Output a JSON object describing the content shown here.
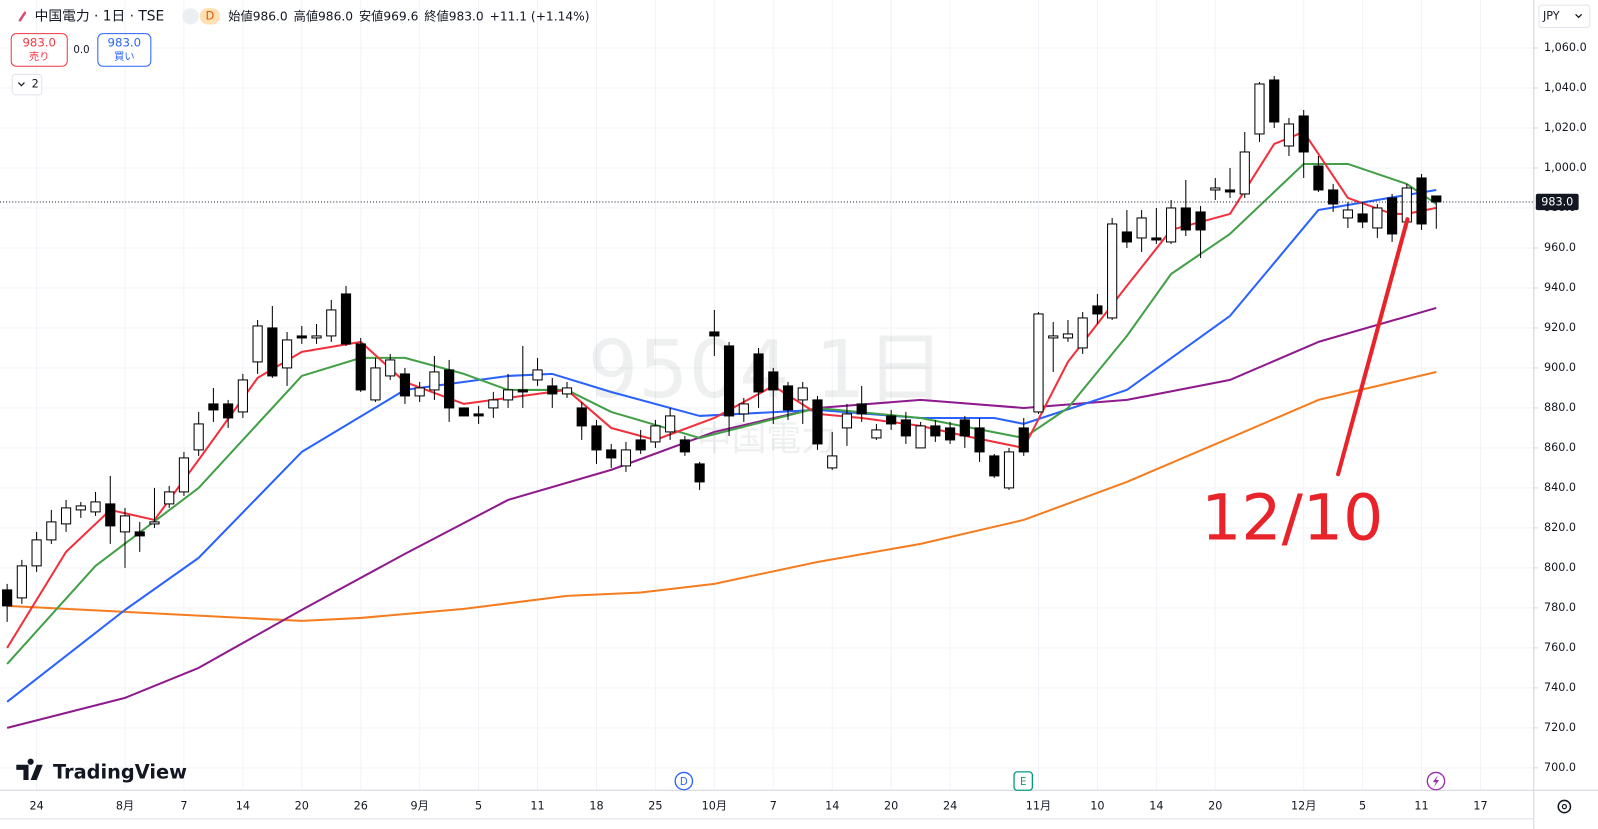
{
  "header": {
    "title": "中国電力 · 1日 · TSE",
    "interval": "D",
    "quote": [
      {
        "label": "始値",
        "value": "986.0"
      },
      {
        "label": "高値",
        "value": "986.0"
      },
      {
        "label": "安値",
        "value": "969.6"
      },
      {
        "label": "終値",
        "value": "983.0"
      }
    ],
    "change": "+11.1 (+1.14%)"
  },
  "trade": {
    "sell_price": "983.0",
    "sell": "売り",
    "spread": "0.0",
    "buy_price": "983.0",
    "buy": "買い"
  },
  "indicators_count": "2",
  "currency": "JPY",
  "watermark": {
    "symbol": "9504 1日",
    "name": "中国電力"
  },
  "logo": "TradingView",
  "events": [
    "D",
    "E"
  ],
  "chart_data": {
    "type": "candlestick",
    "categories": [
      null,
      null,
      "24",
      null,
      null,
      null,
      null,
      null,
      "8月",
      null,
      null,
      null,
      "7",
      null,
      null,
      null,
      "14",
      null,
      null,
      null,
      "20",
      null,
      null,
      null,
      "26",
      null,
      null,
      null,
      "9月",
      null,
      null,
      null,
      "5",
      null,
      null,
      null,
      "11",
      null,
      null,
      null,
      "18",
      null,
      null,
      null,
      "25",
      null,
      null,
      null,
      "10月",
      null,
      null,
      null,
      "7",
      null,
      null,
      null,
      "14",
      null,
      null,
      null,
      "20",
      null,
      null,
      null,
      "24",
      null,
      null,
      null,
      null,
      null,
      "11月",
      null,
      null,
      null,
      "10",
      null,
      null,
      null,
      "14",
      null,
      null,
      null,
      "20",
      null,
      null,
      null,
      null,
      null,
      "12月",
      null,
      null,
      null,
      "5",
      null,
      null,
      null,
      "11",
      null,
      null,
      null,
      "17"
    ],
    "open": [
      789,
      785,
      801,
      814,
      822,
      829,
      828,
      832,
      818,
      818,
      822,
      832,
      838,
      859,
      882,
      882,
      878,
      903,
      920,
      900,
      916,
      915,
      916,
      937,
      912,
      884,
      896,
      897,
      886,
      889,
      899,
      880,
      877,
      880,
      884,
      889,
      894,
      891,
      887,
      880,
      871,
      859,
      851,
      864,
      863,
      868,
      864,
      852,
      918,
      911,
      877,
      907,
      898,
      891,
      884,
      884,
      850,
      870,
      882,
      865,
      876,
      874,
      860,
      871,
      870,
      874,
      870,
      856,
      840,
      870,
      878,
      915,
      915,
      910,
      931,
      925,
      968,
      965,
      965,
      963,
      980,
      978,
      989,
      989,
      987,
      1017,
      1044,
      1011,
      1026,
      1001,
      989,
      975,
      977,
      970,
      985,
      973,
      995,
      986,
      null,
      null,
      null
    ],
    "high": [
      792,
      804,
      818,
      829,
      834,
      833,
      838,
      846,
      830,
      823,
      840,
      841,
      858,
      878,
      890,
      884,
      897,
      924,
      931,
      918,
      921,
      922,
      934,
      941,
      915,
      905,
      907,
      900,
      893,
      906,
      904,
      880,
      881,
      888,
      897,
      911,
      905,
      895,
      893,
      883,
      874,
      862,
      863,
      869,
      874,
      880,
      866,
      853,
      929,
      913,
      885,
      910,
      900,
      893,
      893,
      886,
      868,
      882,
      891,
      872,
      879,
      878,
      873,
      874,
      873,
      876,
      875,
      857,
      860,
      875,
      928,
      923,
      924,
      928,
      937,
      975,
      979,
      979,
      980,
      984,
      994,
      981,
      995,
      1000,
      1018,
      1043,
      1046,
      1025,
      1029,
      1006,
      992,
      983,
      983,
      982,
      987,
      992,
      997,
      986,
      null,
      null,
      null
    ],
    "low": [
      773,
      782,
      798,
      812,
      818,
      825,
      826,
      812,
      800,
      808,
      820,
      830,
      836,
      856,
      873,
      870,
      875,
      897,
      895,
      891,
      912,
      912,
      913,
      911,
      888,
      883,
      894,
      882,
      883,
      884,
      873,
      876,
      872,
      875,
      880,
      880,
      891,
      880,
      885,
      864,
      852,
      850,
      848,
      857,
      860,
      864,
      856,
      839,
      906,
      866,
      873,
      880,
      872,
      874,
      872,
      859,
      849,
      861,
      873,
      864,
      869,
      862,
      860,
      863,
      862,
      860,
      853,
      845,
      839,
      856,
      877,
      898,
      913,
      907,
      922,
      924,
      960,
      958,
      962,
      962,
      966,
      955,
      984,
      985,
      985,
      1013,
      1020,
      1006,
      995,
      988,
      978,
      970,
      970,
      965,
      963,
      970,
      969,
      969.6,
      null,
      null,
      null
    ],
    "close": [
      781,
      801,
      814,
      823,
      830,
      831,
      833,
      821,
      826,
      816,
      823,
      838,
      855,
      872,
      879,
      875,
      894,
      921,
      896,
      914,
      915,
      916,
      929,
      912,
      889,
      900,
      904,
      886,
      890,
      898,
      880,
      876,
      876,
      884,
      889,
      888,
      899,
      887,
      890,
      871,
      859,
      855,
      859,
      859,
      871,
      876,
      858,
      843,
      916,
      876,
      882,
      888,
      889,
      879,
      890,
      862,
      856,
      877,
      877,
      869,
      872,
      866,
      871,
      866,
      864,
      866,
      858,
      846,
      858,
      858,
      927,
      916,
      917,
      925,
      927,
      972,
      963,
      975,
      964,
      980,
      969,
      969,
      990,
      988,
      1008,
      1042,
      1023,
      1022,
      1008,
      989,
      982,
      979,
      973,
      980,
      967,
      990,
      972,
      983,
      null,
      null,
      null
    ],
    "candle_colors": {
      "up": "#ffffff",
      "down": "#000000",
      "border": "#000000"
    },
    "series": [
      {
        "color": "#f57c1f",
        "x": [
          0,
          8,
          20,
          24,
          31,
          38,
          43,
          48,
          55,
          62,
          69,
          76,
          83,
          89,
          97
        ],
        "values": [
          781,
          778,
          773.5,
          775,
          779.5,
          786,
          787.7,
          792,
          803,
          812,
          824,
          843,
          865,
          884,
          898
        ]
      },
      {
        "color": "#8e1a8e",
        "x": [
          0,
          8,
          13,
          20,
          27,
          34,
          41,
          48,
          55,
          62,
          69,
          76,
          83,
          89,
          97
        ],
        "values": [
          720,
          735,
          750,
          779,
          807,
          834,
          849,
          868,
          880,
          884,
          880,
          884,
          894,
          913,
          930
        ]
      },
      {
        "color": "#2962ff",
        "x": [
          0,
          8,
          13,
          20,
          27,
          34,
          37,
          41,
          47,
          55,
          62,
          67,
          69,
          76,
          83,
          89,
          97
        ],
        "values": [
          733,
          779,
          805,
          858,
          889,
          896,
          897,
          888,
          876,
          879,
          875,
          875,
          872,
          889,
          926,
          979,
          989
        ]
      },
      {
        "color": "#43a047",
        "x": [
          0,
          6,
          13,
          20,
          24,
          27,
          31,
          34,
          38,
          41,
          47,
          55,
          62,
          69,
          72,
          76,
          79,
          83,
          88,
          91,
          95,
          97
        ],
        "values": [
          752,
          801,
          840,
          896,
          905,
          905,
          897,
          889,
          889,
          878,
          865,
          880,
          875,
          865,
          880,
          916,
          947,
          967,
          1002,
          1002,
          992,
          982
        ]
      },
      {
        "color": "#f2303c",
        "x": [
          0,
          4,
          7,
          10,
          13,
          17,
          20,
          24,
          27,
          31,
          34,
          38,
          41,
          44,
          48,
          52,
          55,
          58,
          62,
          65,
          69,
          72,
          76,
          79,
          83,
          86,
          88,
          91,
          94,
          95,
          97
        ],
        "values": [
          760,
          808,
          829,
          824,
          854,
          895,
          908,
          913,
          893,
          882,
          885,
          889,
          870,
          864,
          875,
          891,
          877,
          875,
          871,
          866,
          860,
          903,
          941,
          969,
          977,
          1012,
          1018,
          985,
          977,
          977,
          980
        ]
      }
    ],
    "ylim": [
      688.8,
      1084
    ],
    "yticks": [
      {
        "value": 700,
        "label": "700.0"
      },
      {
        "value": 720,
        "label": "720.0"
      },
      {
        "value": 740,
        "label": "740.0"
      },
      {
        "value": 760,
        "label": "760.0"
      },
      {
        "value": 780,
        "label": "780.0"
      },
      {
        "value": 800,
        "label": "800.0"
      },
      {
        "value": 820,
        "label": "820.0"
      },
      {
        "value": 840,
        "label": "840.0"
      },
      {
        "value": 860,
        "label": "860.0"
      },
      {
        "value": 880,
        "label": "880.0"
      },
      {
        "value": 900,
        "label": "900.0"
      },
      {
        "value": 920,
        "label": "920.0"
      },
      {
        "value": 940,
        "label": "940.0"
      },
      {
        "value": 960,
        "label": "960.0"
      },
      {
        "value": 980,
        "label": "980.0"
      },
      {
        "value": 1000,
        "label": "1,000.0"
      },
      {
        "value": 1020,
        "label": "1,020.0"
      },
      {
        "value": 1040,
        "label": "1,040.0"
      },
      {
        "value": 1060,
        "label": "1,060.0"
      }
    ],
    "grid": true,
    "last_price": {
      "value": 983,
      "label": "983.0"
    },
    "annotation": "12/10"
  }
}
